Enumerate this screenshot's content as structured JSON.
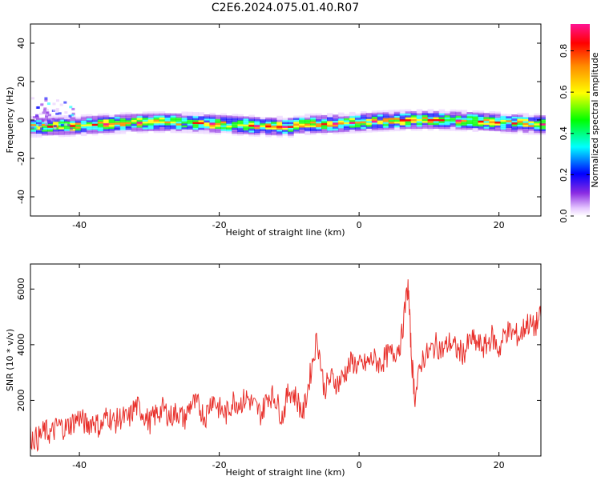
{
  "title": "C2E6.2024.075.01.40.R07",
  "chart_data": [
    {
      "type": "heatmap",
      "xlabel": "Height of straight line (km)",
      "ylabel": "Frequency (Hz)",
      "xlim": [
        -47,
        26
      ],
      "ylim": [
        -50,
        50
      ],
      "x_ticks": [
        "-40",
        "-20",
        "0",
        "20"
      ],
      "x_tick_values": [
        -40,
        -20,
        0,
        20
      ],
      "y_ticks": [
        "40",
        "20",
        "0",
        "-20",
        "-40"
      ],
      "y_tick_values": [
        40,
        20,
        0,
        -20,
        -40
      ],
      "band": {
        "center_freq_hz": -1,
        "half_width_hz": 3,
        "start_km": -47,
        "end_km": 26
      },
      "colorbar": {
        "label": "Normalized spectral amplitude",
        "range": [
          0,
          0.93
        ],
        "ticks": [
          "0.0",
          "0.2",
          "0.4",
          "0.6",
          "0.8"
        ],
        "tick_values": [
          0.0,
          0.2,
          0.4,
          0.6,
          0.8
        ],
        "colormap": [
          "#ffffff",
          "#e6c8ff",
          "#8a2be2",
          "#0000ff",
          "#00ffff",
          "#00ff00",
          "#ffff00",
          "#ff8c00",
          "#ff0000",
          "#ff1493"
        ]
      }
    },
    {
      "type": "line",
      "xlabel": "Height of straight line (km)",
      "ylabel": "SNR (10 * v/v)",
      "xlim": [
        -47,
        26
      ],
      "ylim": [
        0,
        6900
      ],
      "x_ticks": [
        "-40",
        "-20",
        "0",
        "20"
      ],
      "x_tick_values": [
        -40,
        -20,
        0,
        20
      ],
      "y_ticks": [
        "2000",
        "4000",
        "6000"
      ],
      "y_tick_values": [
        2000,
        4000,
        6000
      ],
      "series": [
        {
          "color": "#e8302b",
          "x": [
            -47,
            -46,
            -45,
            -44,
            -43,
            -42,
            -41,
            -40,
            -39,
            -38,
            -37,
            -36,
            -35,
            -34,
            -33,
            -32,
            -31,
            -30,
            -29,
            -28,
            -27,
            -26,
            -25,
            -24,
            -23,
            -22,
            -21,
            -20,
            -19,
            -18,
            -17,
            -16,
            -15,
            -14,
            -13,
            -12,
            -11,
            -10,
            -9,
            -8,
            -7,
            -6,
            -5,
            -4,
            -3,
            -2,
            -1,
            0,
            1,
            2,
            3,
            4,
            5,
            6,
            7,
            7.5,
            8,
            9,
            10,
            11,
            12,
            13,
            14,
            15,
            16,
            17,
            18,
            19,
            20,
            21,
            22,
            23,
            24,
            25,
            26
          ],
          "y": [
            700,
            600,
            900,
            800,
            1100,
            1000,
            1200,
            1400,
            1100,
            1300,
            1000,
            1500,
            1200,
            1400,
            1300,
            1800,
            1600,
            1200,
            1500,
            1700,
            1400,
            1600,
            1300,
            1900,
            1800,
            1400,
            2100,
            1700,
            1500,
            2000,
            1900,
            2100,
            1800,
            1500,
            2200,
            2100,
            1400,
            2400,
            2100,
            1500,
            2900,
            4300,
            2400,
            2800,
            2600,
            3000,
            3400,
            3200,
            3300,
            3500,
            3300,
            3600,
            3700,
            4100,
            6200,
            3500,
            2100,
            3500,
            3700,
            4000,
            3800,
            4100,
            3800,
            3700,
            4200,
            4000,
            3900,
            4300,
            3800,
            4500,
            4400,
            4300,
            4800,
            4600,
            5000
          ]
        }
      ]
    }
  ]
}
